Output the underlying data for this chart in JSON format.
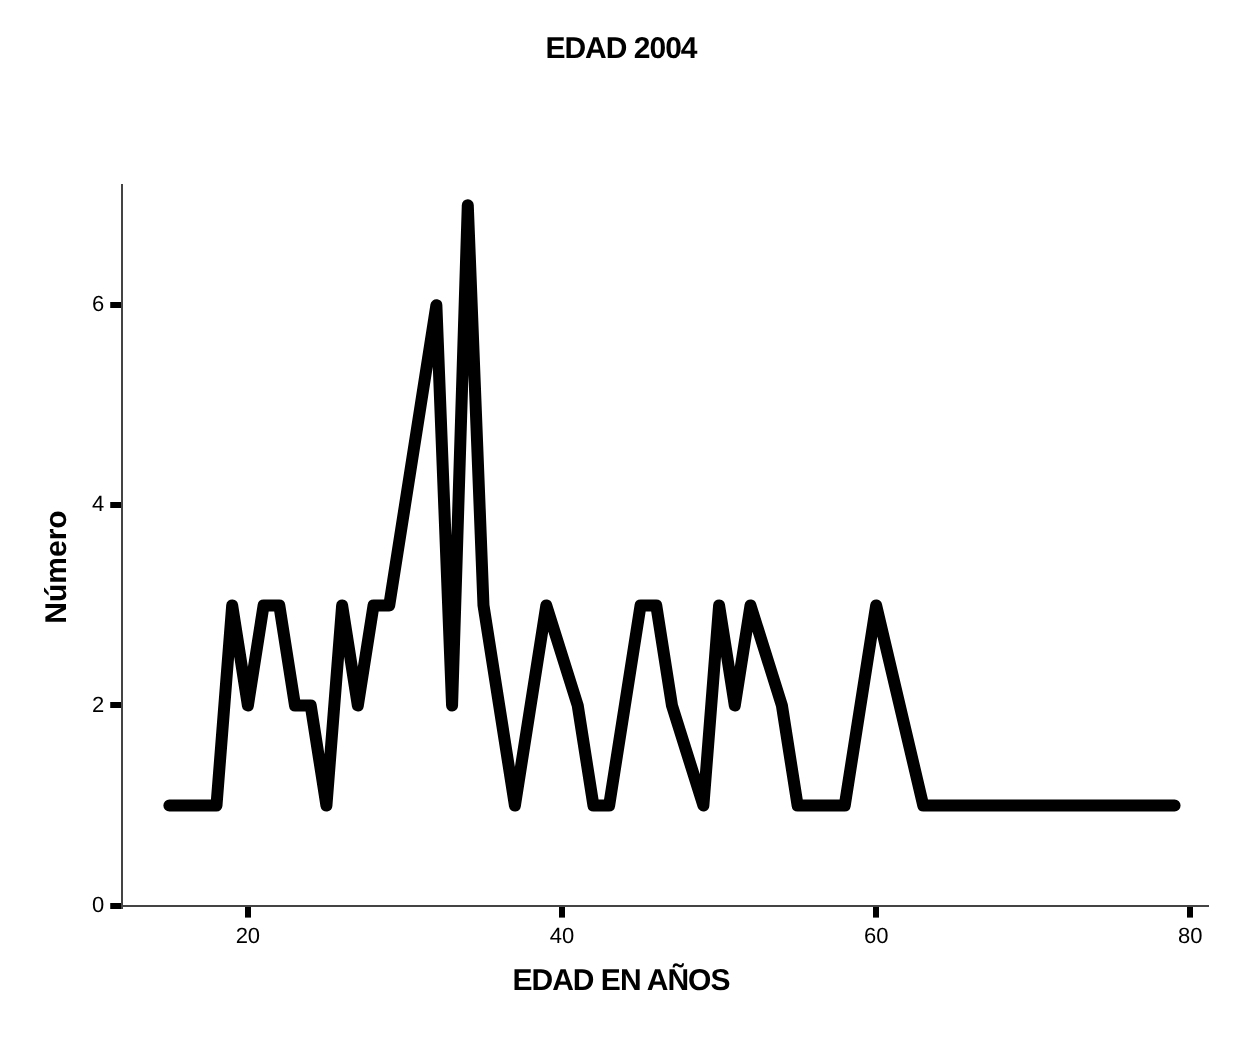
{
  "chart_data": {
    "type": "line",
    "title": "EDAD 2004",
    "xlabel": "EDAD EN AÑOS",
    "ylabel": "Número",
    "x": [
      15,
      18,
      19,
      20,
      21,
      22,
      23,
      24,
      25,
      26,
      27,
      28,
      29,
      30,
      31,
      32,
      33,
      34,
      35,
      36,
      37,
      39,
      41,
      42,
      43,
      45,
      46,
      47,
      49,
      50,
      51,
      52,
      54,
      55,
      58,
      60,
      63,
      79
    ],
    "series": [
      {
        "color": "#000000",
        "values": [
          1,
          1,
          3,
          2,
          3,
          3,
          2,
          2,
          1,
          3,
          2,
          3,
          3,
          4,
          5,
          6,
          2,
          7,
          3,
          2,
          1,
          3,
          2,
          1,
          1,
          3,
          3,
          2,
          1,
          3,
          2,
          3,
          2,
          1,
          1,
          3,
          1,
          1
        ]
      }
    ],
    "xlim": [
      12,
      81
    ],
    "xticks": [
      20,
      40,
      60,
      80
    ],
    "ylim": [
      0,
      7.2
    ],
    "yticks": [
      0,
      2,
      4,
      6
    ],
    "grid": false,
    "legend": false,
    "marker": "none",
    "line_style": "solid"
  }
}
